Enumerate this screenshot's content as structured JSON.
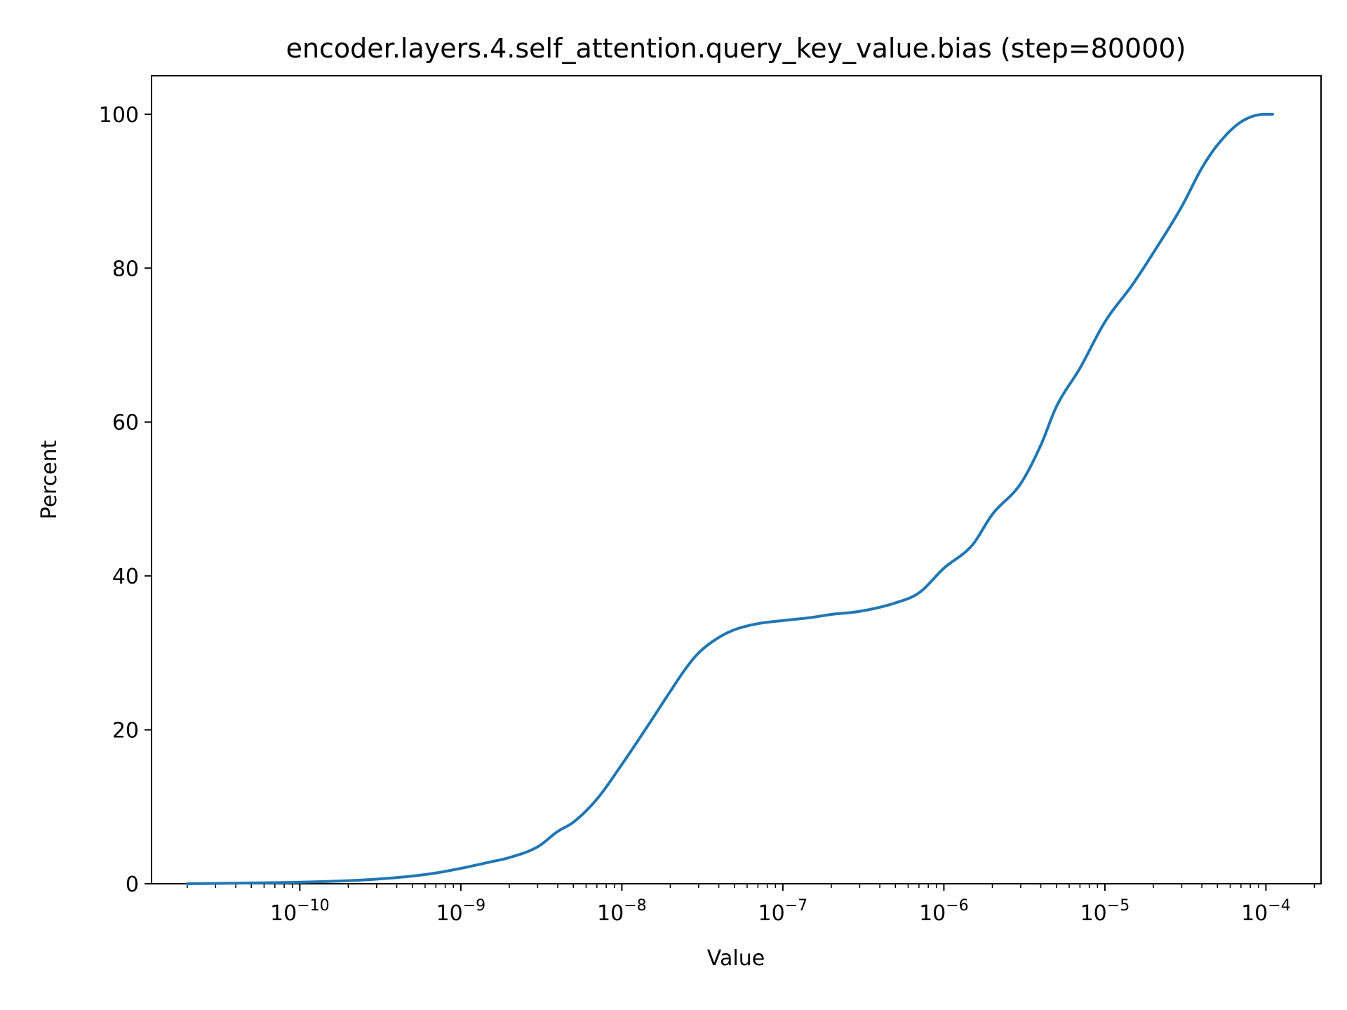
{
  "chart_data": {
    "type": "line",
    "title": "encoder.layers.4.self_attention.query_key_value.bias (step=80000)",
    "xlabel": "Value",
    "ylabel": "Percent",
    "xscale": "log",
    "xlim": [
      1.2e-11,
      0.00022
    ],
    "ylim": [
      0,
      105
    ],
    "grid": false,
    "legend": "none",
    "line_color": "#1f77b4",
    "x_ticks": [
      {
        "base": "10",
        "exp": "−10",
        "value": 1e-10
      },
      {
        "base": "10",
        "exp": "−9",
        "value": 1e-09
      },
      {
        "base": "10",
        "exp": "−8",
        "value": 1e-08
      },
      {
        "base": "10",
        "exp": "−7",
        "value": 1e-07
      },
      {
        "base": "10",
        "exp": "−6",
        "value": 1e-06
      },
      {
        "base": "10",
        "exp": "−5",
        "value": 1e-05
      },
      {
        "base": "10",
        "exp": "−4",
        "value": 0.0001
      }
    ],
    "y_ticks": [
      "0",
      "20",
      "40",
      "60",
      "80",
      "100"
    ],
    "series": [
      {
        "x": [
          2e-11,
          5e-11,
          1e-10,
          2e-10,
          3e-10,
          5e-10,
          7e-10,
          1e-09,
          1.5e-09,
          2e-09,
          3e-09,
          4e-09,
          5e-09,
          7e-09,
          1e-08,
          1.5e-08,
          2e-08,
          2.5e-08,
          3e-08,
          4e-08,
          5e-08,
          7e-08,
          1e-07,
          1.5e-07,
          2e-07,
          3e-07,
          5e-07,
          7e-07,
          1e-06,
          1.5e-06,
          2e-06,
          3e-06,
          4e-06,
          5e-06,
          7e-06,
          1e-05,
          1.5e-05,
          2e-05,
          3e-05,
          4e-05,
          5e-05,
          7e-05,
          0.0001,
          0.00011
        ],
        "y": [
          0,
          0.1,
          0.2,
          0.4,
          0.6,
          1.0,
          1.4,
          2.0,
          2.8,
          3.4,
          4.8,
          6.8,
          8.0,
          11.0,
          15.5,
          21.0,
          25.0,
          28.0,
          30.0,
          32.0,
          33.0,
          33.8,
          34.2,
          34.6,
          35.0,
          35.4,
          36.5,
          37.8,
          41.0,
          44.0,
          48.0,
          52.0,
          57.0,
          62.0,
          67.0,
          73.0,
          78.0,
          82.0,
          88.0,
          93.0,
          96.0,
          99.0,
          100.0,
          100.0
        ]
      }
    ]
  }
}
